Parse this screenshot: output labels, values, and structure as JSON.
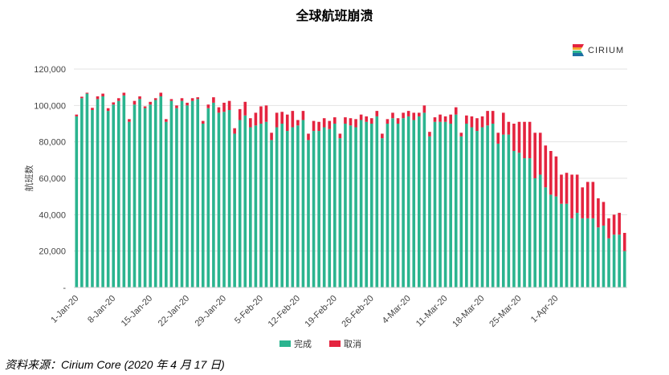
{
  "title": "全球航班崩溃",
  "logo": {
    "name": "CIRIUM",
    "colors": [
      "#e4243f",
      "#f3a72c",
      "#2bb48f",
      "#1d6fa3"
    ]
  },
  "source": "资料来源：Cirium Core (2020 年 4 月 17 日)",
  "chart_data": {
    "type": "bar",
    "stacked": true,
    "ylabel": "航班数",
    "ylim": [
      0,
      120000
    ],
    "yticks": [
      0,
      20000,
      40000,
      60000,
      80000,
      100000,
      120000
    ],
    "ytick_labels": [
      "-",
      "20,000",
      "40,000",
      "60,000",
      "80,000",
      "100,000",
      "120,000"
    ],
    "xtick_labels": [
      "1-Jan-20",
      "8-Jan-20",
      "15-Jan-20",
      "22-Jan-20",
      "29-Jan-20",
      "5-Feb-20",
      "12-Feb-20",
      "19-Feb-20",
      "26-Feb-20",
      "4-Mar-20",
      "11-Mar-20",
      "18-Mar-20",
      "25-Mar-20",
      "1-Apr-20"
    ],
    "xtick_every": 7,
    "grid": "horizontal",
    "legend_position": "bottom",
    "series": [
      {
        "name": "完成",
        "color": "#2bb48f",
        "values": [
          94000,
          104000,
          106500,
          97500,
          103500,
          105000,
          97000,
          100500,
          102500,
          105500,
          91000,
          100500,
          103500,
          98500,
          100500,
          103000,
          105000,
          91000,
          102500,
          98500,
          102500,
          100000,
          102500,
          103500,
          90000,
          98500,
          101500,
          96000,
          96500,
          97500,
          84500,
          92000,
          94500,
          88000,
          89000,
          90000,
          91000,
          81000,
          88000,
          90000,
          86000,
          88000,
          89000,
          92000,
          81000,
          86000,
          86000,
          88000,
          87000,
          90000,
          82000,
          90000,
          89000,
          88000,
          92000,
          91000,
          90000,
          94000,
          82000,
          90000,
          93000,
          90000,
          93000,
          94000,
          92000,
          94000,
          96000,
          83000,
          91000,
          91000,
          91000,
          90000,
          95000,
          83000,
          90000,
          88000,
          86000,
          88000,
          89000,
          90000,
          79000,
          84000,
          84000,
          75000,
          74000,
          71000,
          71000,
          60000,
          62000,
          55000,
          51000,
          50000,
          46000,
          46000,
          38000,
          41000,
          38000,
          38000,
          38000,
          33000,
          34000,
          27000,
          29000,
          29000,
          20000
        ]
      },
      {
        "name": "取消",
        "color": "#e4243f",
        "values": [
          1000,
          800,
          500,
          1200,
          1500,
          1500,
          1500,
          1200,
          1500,
          1500,
          1500,
          2000,
          1500,
          1000,
          1500,
          1000,
          2000,
          1500,
          1000,
          1500,
          1500,
          1500,
          1500,
          1000,
          1500,
          2000,
          3000,
          3000,
          5000,
          5000,
          3000,
          6000,
          7500,
          5000,
          7000,
          9500,
          9000,
          4000,
          8000,
          6500,
          9000,
          9000,
          3000,
          5000,
          3500,
          5500,
          5000,
          5000,
          4500,
          3500,
          2500,
          3500,
          4000,
          4500,
          3000,
          3000,
          3000,
          3000,
          2500,
          2500,
          3000,
          3000,
          3000,
          3000,
          4000,
          2000,
          4000,
          2500,
          2500,
          4000,
          3000,
          5000,
          4000,
          2000,
          4500,
          6000,
          7000,
          6000,
          8000,
          7000,
          6000,
          12000,
          7000,
          15000,
          17000,
          20000,
          20000,
          25000,
          23000,
          23000,
          24000,
          22000,
          16000,
          17000,
          24000,
          21000,
          17000,
          20000,
          20000,
          16000,
          13000,
          11000,
          11000,
          12000,
          10000
        ]
      }
    ]
  }
}
